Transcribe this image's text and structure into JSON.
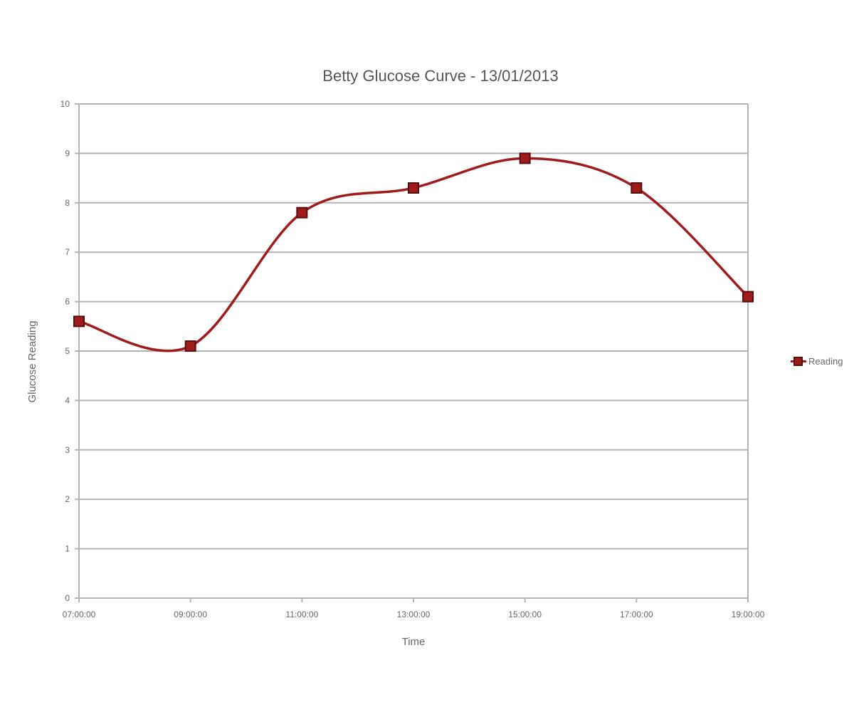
{
  "chart_data": {
    "type": "line",
    "title": "Betty Glucose Curve - 13/01/2013",
    "xlabel": "Time",
    "ylabel": "Glucose Reading",
    "x": [
      "07:00:00",
      "09:00:00",
      "11:00:00",
      "13:00:00",
      "15:00:00",
      "17:00:00",
      "19:00:00"
    ],
    "series": [
      {
        "name": "Reading",
        "values": [
          5.6,
          5.1,
          7.8,
          8.3,
          8.9,
          8.3,
          6.1
        ]
      }
    ],
    "ylim": [
      0,
      10
    ],
    "yticks": [
      0,
      1,
      2,
      3,
      4,
      5,
      6,
      7,
      8,
      9,
      10
    ],
    "grid": true,
    "smooth": true,
    "legend_position": "right",
    "colors": {
      "line": "#a01c1c",
      "marker": "#a01c1c",
      "marker_border": "#5a0d0d",
      "grid": "#b3b3b3"
    }
  }
}
